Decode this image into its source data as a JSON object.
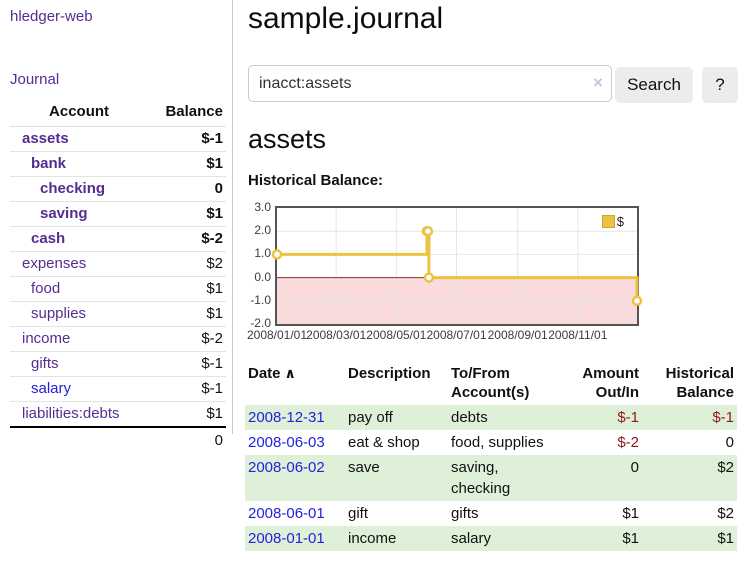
{
  "app": {
    "title": "hledger-web",
    "nav": {
      "journal": "Journal"
    }
  },
  "sidebar": {
    "header": {
      "account": "Account",
      "balance": "Balance"
    },
    "accounts": [
      {
        "name": "assets",
        "indent": 1,
        "bold": true,
        "balance": "$-1",
        "negative": "strong",
        "link_style": "purple"
      },
      {
        "name": "bank",
        "indent": 2,
        "bold": true,
        "balance": "$1",
        "negative": "none",
        "link_style": "purple"
      },
      {
        "name": "checking",
        "indent": 3,
        "bold": true,
        "balance": "0",
        "negative": "none",
        "link_style": "purple"
      },
      {
        "name": "saving",
        "indent": 3,
        "bold": true,
        "balance": "$1",
        "negative": "none",
        "link_style": "purple"
      },
      {
        "name": "cash",
        "indent": 2,
        "bold": true,
        "balance": "$-2",
        "negative": "strong",
        "link_style": "purple"
      },
      {
        "name": "expenses",
        "indent": 1,
        "bold": false,
        "balance": "$2",
        "negative": "none",
        "link_style": "purple"
      },
      {
        "name": "food",
        "indent": 2,
        "bold": false,
        "balance": "$1",
        "negative": "none",
        "link_style": "purple"
      },
      {
        "name": "supplies",
        "indent": 2,
        "bold": false,
        "balance": "$1",
        "negative": "none",
        "link_style": "purple"
      },
      {
        "name": "income",
        "indent": 1,
        "bold": false,
        "balance": "$-2",
        "negative": "dim",
        "link_style": "purple"
      },
      {
        "name": "gifts",
        "indent": 2,
        "bold": false,
        "balance": "$-1",
        "negative": "dim",
        "link_style": "purple"
      },
      {
        "name": "salary",
        "indent": 2,
        "bold": false,
        "balance": "$-1",
        "negative": "dim",
        "link_style": "blue"
      },
      {
        "name": "liabilities:debts",
        "indent": 1,
        "bold": false,
        "balance": "$1",
        "negative": "none",
        "link_style": "purple"
      }
    ],
    "total": "0"
  },
  "main": {
    "title": "sample.journal",
    "search": {
      "value": "inacct:assets",
      "clear_icon": "×",
      "search_button": "Search",
      "help_button": "?"
    },
    "account_heading": "assets",
    "chart_title": "Historical Balance:"
  },
  "chart_data": {
    "type": "line",
    "line_style": "step-after",
    "title": "Historical Balance",
    "legend": [
      {
        "label": "$",
        "color": "#edc240"
      }
    ],
    "legend_position": "top-right",
    "ylim": [
      -2.0,
      3.0
    ],
    "y_ticks": [
      {
        "label": "3.0",
        "value": 3
      },
      {
        "label": "2.0",
        "value": 2
      },
      {
        "label": "1.0",
        "value": 1
      },
      {
        "label": "0.0",
        "value": 0
      },
      {
        "label": "-1.0",
        "value": -1
      },
      {
        "label": "-2.0",
        "value": -2
      }
    ],
    "x_ticks": [
      {
        "label": "2008/01/01",
        "day": 0
      },
      {
        "label": "2008/03/01",
        "day": 60
      },
      {
        "label": "2008/05/01",
        "day": 121
      },
      {
        "label": "2008/07/01",
        "day": 182
      },
      {
        "label": "2008/09/01",
        "day": 244
      },
      {
        "label": "2008/11/01",
        "day": 305
      }
    ],
    "x_range_days": 365,
    "series": [
      {
        "name": "$",
        "color": "#edc240",
        "points": [
          {
            "date": "2008-01-01",
            "day": 0,
            "value": 1
          },
          {
            "date": "2008-06-01",
            "day": 152,
            "value": 2
          },
          {
            "date": "2008-06-02",
            "day": 153,
            "value": 2
          },
          {
            "date": "2008-06-03",
            "day": 154,
            "value": 0
          },
          {
            "date": "2008-12-31",
            "day": 365,
            "value": -1
          }
        ]
      }
    ],
    "grid": true,
    "gridline_color": "#e6e6e6",
    "negative_region_color": "#f9dbdb",
    "zero_line_color": "#8b2a2a"
  },
  "register": {
    "columns": [
      {
        "label": "Date",
        "sort_icon": "∧",
        "align": "left"
      },
      {
        "label": "Description",
        "align": "left"
      },
      {
        "label": "To/From Account(s)",
        "align": "left"
      },
      {
        "label": "Amount Out/In",
        "align": "right"
      },
      {
        "label": "Historical Balance",
        "align": "right"
      }
    ],
    "rows": [
      {
        "date": "2008-12-31",
        "description": "pay off",
        "accounts": "debts",
        "amount": "$-1",
        "amount_negative": true,
        "balance": "$-1",
        "balance_negative": true,
        "highlight": true
      },
      {
        "date": "2008-06-03",
        "description": "eat & shop",
        "accounts": "food, supplies",
        "amount": "$-2",
        "amount_negative": true,
        "balance": "0",
        "balance_negative": false,
        "highlight": false
      },
      {
        "date": "2008-06-02",
        "description": "save",
        "accounts": "saving,\nchecking",
        "amount": "0",
        "amount_negative": false,
        "balance": "$2",
        "balance_negative": false,
        "highlight": true
      },
      {
        "date": "2008-06-01",
        "description": "gift",
        "accounts": "gifts",
        "amount": "$1",
        "amount_negative": false,
        "balance": "$2",
        "balance_negative": false,
        "highlight": false
      },
      {
        "date": "2008-01-01",
        "description": "income",
        "accounts": "salary",
        "amount": "$1",
        "amount_negative": false,
        "balance": "$1",
        "balance_negative": false,
        "highlight": true
      }
    ],
    "row_highlight_color": "#dff0d8"
  },
  "colors": {
    "link_purple": "#552d90",
    "link_blue": "#2222dd",
    "negative_strong": "#8b1a1a",
    "negative_dim": "#c08282",
    "series_gold": "#edc240"
  }
}
